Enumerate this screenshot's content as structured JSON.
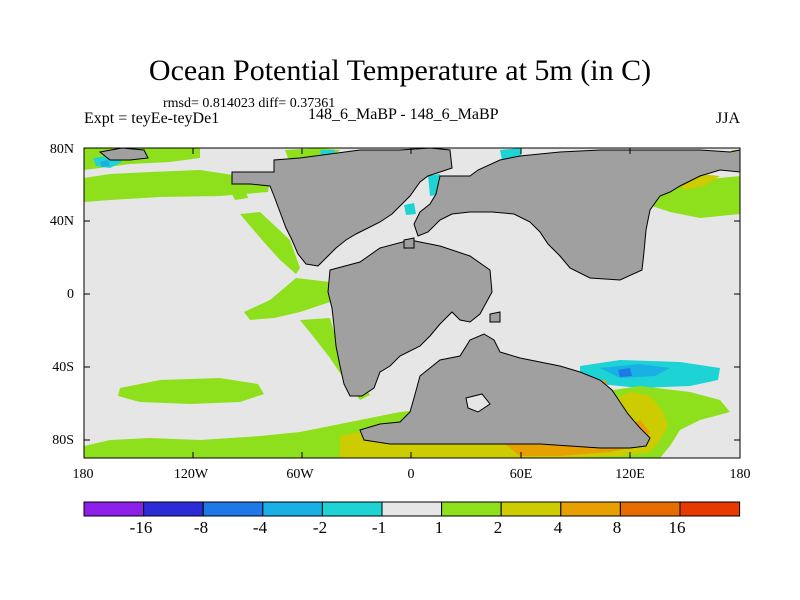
{
  "title": "Ocean Potential Temperature at 5m (in C)",
  "stats": "rmsd= 0.814023 diff= 0.37361",
  "expt": "Expt = teyEe-teyDe1",
  "experiments": "148_6_MaBP - 148_6_MaBP",
  "season": "JJA",
  "lat_labels": [
    "80N",
    "40N",
    "0",
    "40S",
    "80S"
  ],
  "lon_labels": [
    "180",
    "120W",
    "60W",
    "0",
    "60E",
    "120E",
    "180"
  ],
  "colorbar": {
    "colors": [
      "#8c1fe8",
      "#2b2bd8",
      "#1e78e6",
      "#19b0e6",
      "#1ed3d3",
      "#e6e6e6",
      "#8fe01c",
      "#cccc00",
      "#e6a000",
      "#e66c00",
      "#e63a00"
    ],
    "labels": [
      "-16",
      "-8",
      "-4",
      "-2",
      "-1",
      "1",
      "2",
      "4",
      "8",
      "16"
    ]
  },
  "map_colors": {
    "ocean": "#e6e6e6",
    "land": "#a0a0a0",
    "green": "#8fe01c",
    "yellow": "#cccc00",
    "orange": "#e6a000",
    "cyan": "#1ed3d3",
    "lightblue": "#19b0e6",
    "blue": "#1e78e6"
  }
}
